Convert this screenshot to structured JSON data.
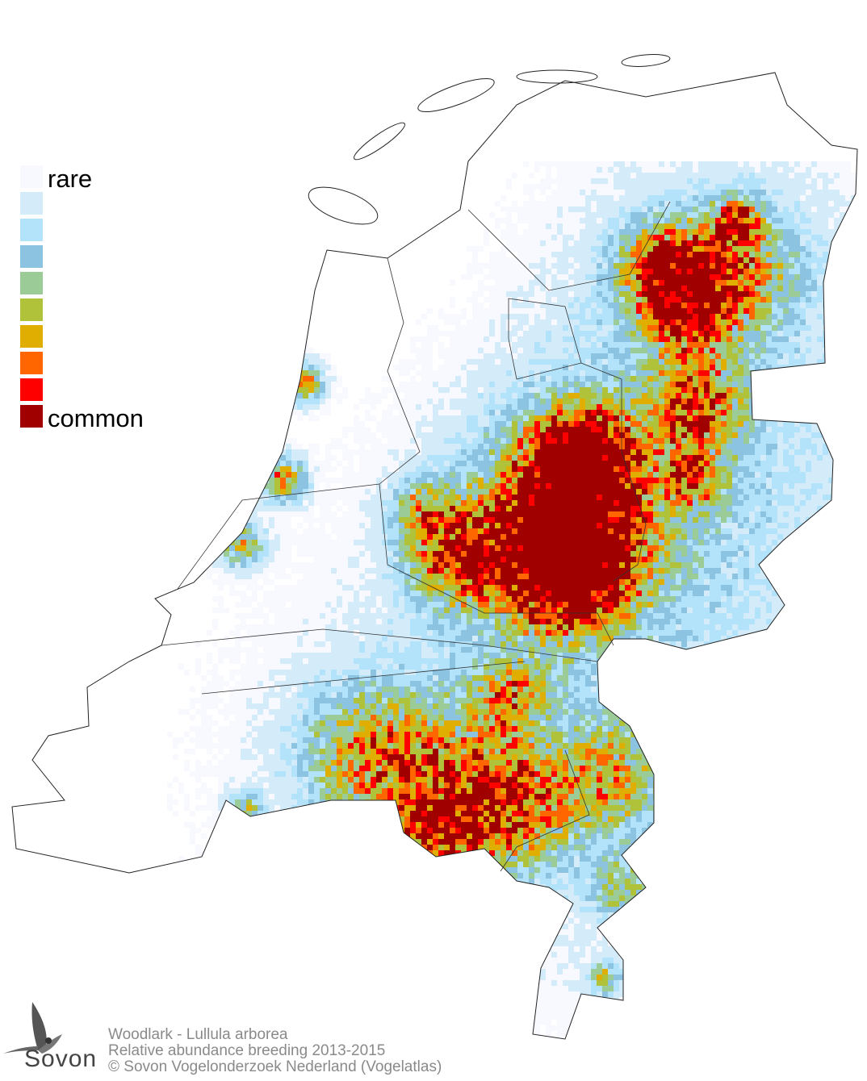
{
  "legend": {
    "top_label": "rare",
    "bottom_label": "common",
    "colors": [
      "#F8F8FF",
      "#D4ECFA",
      "#B3E3FA",
      "#8BC3E0",
      "#9BCB96",
      "#B0C13A",
      "#E0AE00",
      "#FF6600",
      "#FF0000",
      "#A00000"
    ]
  },
  "footer": {
    "title": "Woodlark - Lullula arborea",
    "subtitle": "Relative abundance breeding 2013-2015",
    "copyright": "© Sovon Vogelonderzoek Nederland (Vogelatlas)"
  },
  "logo": {
    "text": "Sovon",
    "icon": "swallow-icon"
  }
}
